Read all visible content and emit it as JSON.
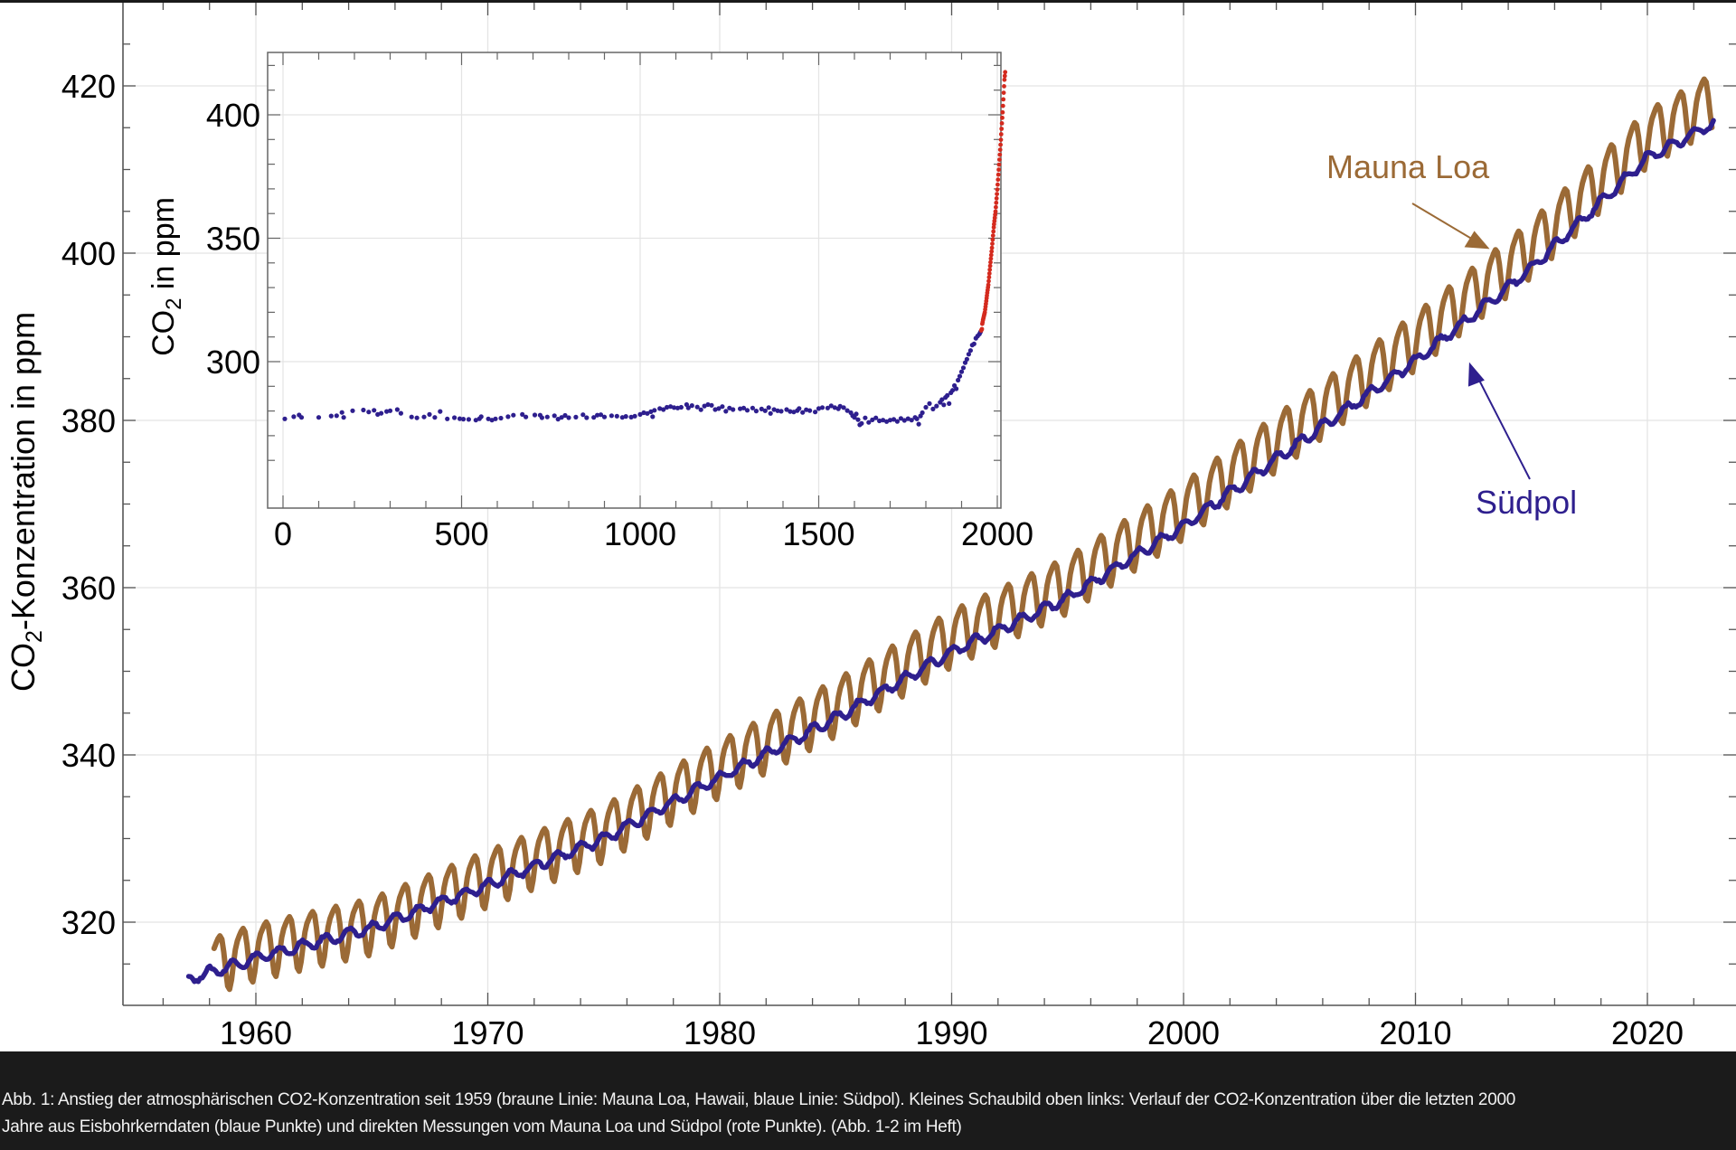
{
  "caption": {
    "line1": "Abb. 1: Anstieg der atmosphärischen CO2-Konzentration seit 1959 (braune Linie: Mauna Loa, Hawaii, blaue Linie: Südpol). Kleines Schaubild oben links: Verlauf der CO2-Konzentration über die letzten 2000",
    "line2": "Jahre aus Eisbohrkerndaten (blaue Punkte) und direkten Messungen vom Mauna Loa und Südpol (rote Punkte). (Abb. 1-2 im Heft)"
  },
  "colors": {
    "mauna_loa": "#9b6a36",
    "suedpol": "#2e1f8e",
    "ice_core": "#2e1f8e",
    "direct": "#d42a1e",
    "caption_bg": "#1b1b1b"
  },
  "chart_data": [
    {
      "type": "line",
      "title": "",
      "xlabel": "",
      "ylabel": "CO2-Konzentration in ppm",
      "ylabel_main": "CO",
      "ylabel_sub": "2",
      "ylabel_rest": "-Konzentration in ppm",
      "xlim": [
        1953.1,
        2023.9
      ],
      "ylim": [
        311,
        429
      ],
      "x_ticks": [
        1960,
        1970,
        1980,
        1990,
        2000,
        2010,
        2020
      ],
      "x_tick_labels": [
        "1960",
        "1970",
        "1980",
        "1990",
        "2000",
        "2010",
        "2020"
      ],
      "y_ticks": [
        320,
        340,
        360,
        380,
        400,
        420
      ],
      "y_tick_labels": [
        "320",
        "340",
        "360",
        "380",
        "400",
        "420"
      ],
      "grid": true,
      "series": [
        {
          "name": "Mauna Loa",
          "x_start": 1958.2,
          "x_end": 2022.8,
          "seasonal_amplitude_ppm": 6.5,
          "trend_points": [
            [
              1958.2,
              315.3
            ],
            [
              1960,
              316.9
            ],
            [
              1965,
              320.0
            ],
            [
              1970,
              325.7
            ],
            [
              1975,
              331.1
            ],
            [
              1980,
              338.8
            ],
            [
              1985,
              346.1
            ],
            [
              1990,
              354.4
            ],
            [
              1995,
              360.8
            ],
            [
              2000,
              369.7
            ],
            [
              2005,
              379.8
            ],
            [
              2010,
              389.9
            ],
            [
              2015,
              401.0
            ],
            [
              2020,
              414.2
            ],
            [
              2022.8,
              418.5
            ]
          ]
        },
        {
          "name": "Südpol",
          "x_start": 1957.1,
          "x_end": 2022.9,
          "seasonal_amplitude_ppm": 1.2,
          "trend_points": [
            [
              1957.1,
              313.2
            ],
            [
              1960,
              315.7
            ],
            [
              1965,
              319.3
            ],
            [
              1970,
              324.5
            ],
            [
              1975,
              330.0
            ],
            [
              1980,
              337.3
            ],
            [
              1985,
              344.4
            ],
            [
              1990,
              352.3
            ],
            [
              1995,
              358.8
            ],
            [
              2000,
              367.4
            ],
            [
              2005,
              377.4
            ],
            [
              2010,
              387.1
            ],
            [
              2015,
              398.2
            ],
            [
              2020,
              411.4
            ],
            [
              2022.9,
              415.6
            ]
          ]
        }
      ],
      "annotations": [
        {
          "text": "Mauna Loa",
          "series": "Mauna Loa",
          "arrow_to": [
            2013.2,
            400.5
          ]
        },
        {
          "text": "Südpol",
          "series": "Südpol",
          "arrow_to": [
            2012.2,
            387.5
          ]
        }
      ]
    },
    {
      "type": "scatter",
      "title": "",
      "xlabel": "",
      "ylabel": "CO2 in ppm",
      "ylabel_main": "CO",
      "ylabel_sub": "2",
      "ylabel_rest": " in ppm",
      "xlim": [
        -45,
        2045
      ],
      "ylim": [
        257,
        422
      ],
      "x_ticks": [
        0,
        500,
        1000,
        1500,
        2000
      ],
      "x_tick_labels": [
        "0",
        "500",
        "1000",
        "1500",
        "2000"
      ],
      "y_ticks": [
        300,
        350,
        400
      ],
      "y_tick_labels": [
        "300",
        "350",
        "400"
      ],
      "grid": true,
      "series": [
        {
          "name": "Eisbohrkerndaten",
          "points": [
            [
              5,
              276.8
            ],
            [
              30,
              277.7
            ],
            [
              45,
              278.4
            ],
            [
              52,
              277.4
            ],
            [
              100,
              277.4
            ],
            [
              135,
              278.0
            ],
            [
              150,
              278.1
            ],
            [
              165,
              279.4
            ],
            [
              170,
              277.4
            ],
            [
              195,
              280.1
            ],
            [
              225,
              280.4
            ],
            [
              240,
              279.6
            ],
            [
              255,
              280.3
            ],
            [
              265,
              278.6
            ],
            [
              275,
              279.1
            ],
            [
              290,
              279.8
            ],
            [
              300,
              280.1
            ],
            [
              320,
              280.6
            ],
            [
              330,
              279.1
            ],
            [
              360,
              277.6
            ],
            [
              375,
              277.2
            ],
            [
              395,
              277.6
            ],
            [
              410,
              278.6
            ],
            [
              425,
              277.4
            ],
            [
              440,
              279.8
            ],
            [
              460,
              276.8
            ],
            [
              480,
              277.3
            ],
            [
              495,
              276.9
            ],
            [
              505,
              276.7
            ],
            [
              520,
              276.6
            ],
            [
              540,
              276.3
            ],
            [
              550,
              276.9
            ],
            [
              555,
              277.7
            ],
            [
              575,
              276.8
            ],
            [
              585,
              276.3
            ],
            [
              595,
              276.8
            ],
            [
              610,
              277.1
            ],
            [
              630,
              277.7
            ],
            [
              645,
              278.3
            ],
            [
              670,
              278.6
            ],
            [
              680,
              277.6
            ],
            [
              705,
              278.4
            ],
            [
              720,
              278.3
            ],
            [
              725,
              277.3
            ],
            [
              740,
              277.6
            ],
            [
              760,
              278.1
            ],
            [
              770,
              276.7
            ],
            [
              780,
              277.4
            ],
            [
              790,
              278.2
            ],
            [
              800,
              277.3
            ],
            [
              820,
              277.5
            ],
            [
              840,
              278.5
            ],
            [
              850,
              277.3
            ],
            [
              870,
              277.4
            ],
            [
              880,
              278.3
            ],
            [
              890,
              278.5
            ],
            [
              900,
              277.6
            ],
            [
              920,
              278.1
            ],
            [
              935,
              277.9
            ],
            [
              950,
              277.4
            ],
            [
              960,
              277.8
            ],
            [
              975,
              277.5
            ],
            [
              985,
              277.9
            ],
            [
              1000,
              278.6
            ],
            [
              1010,
              279.3
            ],
            [
              1020,
              279.0
            ],
            [
              1030,
              279.7
            ],
            [
              1035,
              277.7
            ],
            [
              1040,
              280.3
            ],
            [
              1055,
              281.0
            ],
            [
              1065,
              280.6
            ],
            [
              1075,
              281.5
            ],
            [
              1085,
              281.8
            ],
            [
              1095,
              281.4
            ],
            [
              1105,
              281.2
            ],
            [
              1115,
              281.5
            ],
            [
              1130,
              282.6
            ],
            [
              1135,
              281.3
            ],
            [
              1145,
              282.2
            ],
            [
              1160,
              281.6
            ],
            [
              1170,
              280.5
            ],
            [
              1180,
              282.0
            ],
            [
              1190,
              282.6
            ],
            [
              1200,
              282.3
            ],
            [
              1210,
              280.6
            ],
            [
              1220,
              281.0
            ],
            [
              1230,
              281.8
            ],
            [
              1240,
              279.9
            ],
            [
              1250,
              281.2
            ],
            [
              1260,
              280.6
            ],
            [
              1280,
              280.9
            ],
            [
              1290,
              281.2
            ],
            [
              1300,
              280.3
            ],
            [
              1315,
              281.2
            ],
            [
              1325,
              280.0
            ],
            [
              1340,
              280.8
            ],
            [
              1350,
              280.1
            ],
            [
              1360,
              281.4
            ],
            [
              1365,
              279.0
            ],
            [
              1375,
              280.6
            ],
            [
              1385,
              280.1
            ],
            [
              1395,
              279.9
            ],
            [
              1410,
              280.6
            ],
            [
              1420,
              279.8
            ],
            [
              1430,
              279.6
            ],
            [
              1440,
              280.2
            ],
            [
              1445,
              281.0
            ],
            [
              1455,
              279.4
            ],
            [
              1465,
              280.5
            ],
            [
              1475,
              280.2
            ],
            [
              1490,
              279.6
            ],
            [
              1500,
              281.0
            ],
            [
              1510,
              281.4
            ],
            [
              1525,
              281.2
            ],
            [
              1535,
              282.1
            ],
            [
              1545,
              281.4
            ],
            [
              1555,
              280.9
            ],
            [
              1560,
              281.9
            ],
            [
              1570,
              281.4
            ],
            [
              1580,
              280.2
            ],
            [
              1590,
              279.3
            ],
            [
              1595,
              278.1
            ],
            [
              1600,
              277.4
            ],
            [
              1605,
              278.8
            ],
            [
              1610,
              276.5
            ],
            [
              1615,
              274.4
            ],
            [
              1620,
              275.0
            ],
            [
              1630,
              277.2
            ],
            [
              1640,
              275.4
            ],
            [
              1650,
              276.4
            ],
            [
              1660,
              277.2
            ],
            [
              1670,
              276.0
            ],
            [
              1680,
              276.3
            ],
            [
              1690,
              275.7
            ],
            [
              1700,
              276.3
            ],
            [
              1710,
              276.6
            ],
            [
              1720,
              275.8
            ],
            [
              1730,
              277.0
            ],
            [
              1740,
              276.2
            ],
            [
              1750,
              276.9
            ],
            [
              1760,
              276.3
            ],
            [
              1770,
              277.4
            ],
            [
              1775,
              276.8
            ],
            [
              1780,
              274.7
            ],
            [
              1785,
              278.0
            ],
            [
              1790,
              279.3
            ],
            [
              1800,
              281.5
            ],
            [
              1810,
              283.0
            ],
            [
              1820,
              280.8
            ],
            [
              1830,
              282.0
            ],
            [
              1840,
              283.5
            ],
            [
              1845,
              284.6
            ],
            [
              1850,
              282.5
            ],
            [
              1855,
              285.5
            ],
            [
              1860,
              286.3
            ],
            [
              1865,
              283.0
            ],
            [
              1870,
              287.4
            ],
            [
              1875,
              288.4
            ],
            [
              1880,
              290.3
            ],
            [
              1885,
              289.0
            ],
            [
              1890,
              292.5
            ],
            [
              1895,
              294.1
            ],
            [
              1900,
              295.9
            ],
            [
              1905,
              297.5
            ],
            [
              1910,
              299.6
            ],
            [
              1915,
              301.0
            ],
            [
              1920,
              303.0
            ],
            [
              1925,
              304.5
            ],
            [
              1930,
              306.7
            ],
            [
              1935,
              307.2
            ],
            [
              1940,
              309.5
            ],
            [
              1945,
              310.4
            ],
            [
              1950,
              311.2
            ],
            [
              1953,
              312.0
            ]
          ]
        },
        {
          "name": "Direkte Messungen",
          "x_start": 1955,
          "x_end": 2022,
          "step_years": 1
        }
      ]
    }
  ]
}
